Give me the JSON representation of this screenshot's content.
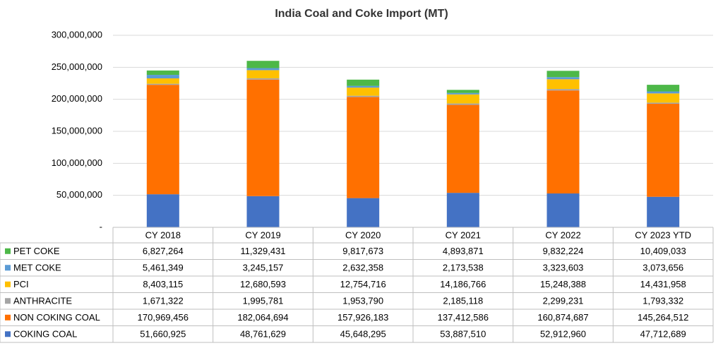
{
  "chart_data": {
    "type": "stacked_bar",
    "title": "India Coal and Coke Import (MT)",
    "categories": [
      "CY 2018",
      "CY 2019",
      "CY 2020",
      "CY 2021",
      "CY 2022",
      "CY 2023 YTD"
    ],
    "series": [
      {
        "name": "PET COKE",
        "color": "#4db848",
        "values": [
          6827264,
          11329431,
          9817673,
          4893871,
          9832224,
          10409033
        ],
        "value_labels": [
          "6,827,264",
          "11,329,431",
          "9,817,673",
          "4,893,871",
          "9,832,224",
          "10,409,033"
        ]
      },
      {
        "name": "MET COKE",
        "color": "#5b9bd5",
        "values": [
          5461349,
          3245157,
          2632358,
          2173538,
          3323603,
          3073656
        ],
        "value_labels": [
          "5,461,349",
          "3,245,157",
          "2,632,358",
          "2,173,538",
          "3,323,603",
          "3,073,656"
        ]
      },
      {
        "name": "PCI",
        "color": "#ffc000",
        "values": [
          8403115,
          12680593,
          12754716,
          14186766,
          15248388,
          14431958
        ],
        "value_labels": [
          "8,403,115",
          "12,680,593",
          "12,754,716",
          "14,186,766",
          "15,248,388",
          "14,431,958"
        ]
      },
      {
        "name": "ANTHRACITE",
        "color": "#a5a5a5",
        "values": [
          1671322,
          1995781,
          1953790,
          2185118,
          2299231,
          1793332
        ],
        "value_labels": [
          "1,671,322",
          "1,995,781",
          "1,953,790",
          "2,185,118",
          "2,299,231",
          "1,793,332"
        ]
      },
      {
        "name": "NON COKING COAL",
        "color": "#ff7000",
        "values": [
          170969456,
          182064694,
          157926183,
          137412586,
          160874687,
          145264512
        ],
        "value_labels": [
          "170,969,456",
          "182,064,694",
          "157,926,183",
          "137,412,586",
          "160,874,687",
          "145,264,512"
        ]
      },
      {
        "name": "COKING COAL",
        "color": "#4472c4",
        "values": [
          51660925,
          48761629,
          45648295,
          53887510,
          52912960,
          47712689
        ],
        "value_labels": [
          "51,660,925",
          "48,761,629",
          "45,648,295",
          "53,887,510",
          "52,912,960",
          "47,712,689"
        ]
      }
    ],
    "ylim": [
      0,
      300000000
    ],
    "yticks": [
      {
        "value": 0,
        "label": "-"
      },
      {
        "value": 50000000,
        "label": "50,000,000"
      },
      {
        "value": 100000000,
        "label": "100,000,000"
      },
      {
        "value": 150000000,
        "label": "150,000,000"
      },
      {
        "value": 200000000,
        "label": "200,000,000"
      },
      {
        "value": 250000000,
        "label": "250,000,000"
      },
      {
        "value": 300000000,
        "label": "300,000,000"
      }
    ],
    "grid": true
  }
}
